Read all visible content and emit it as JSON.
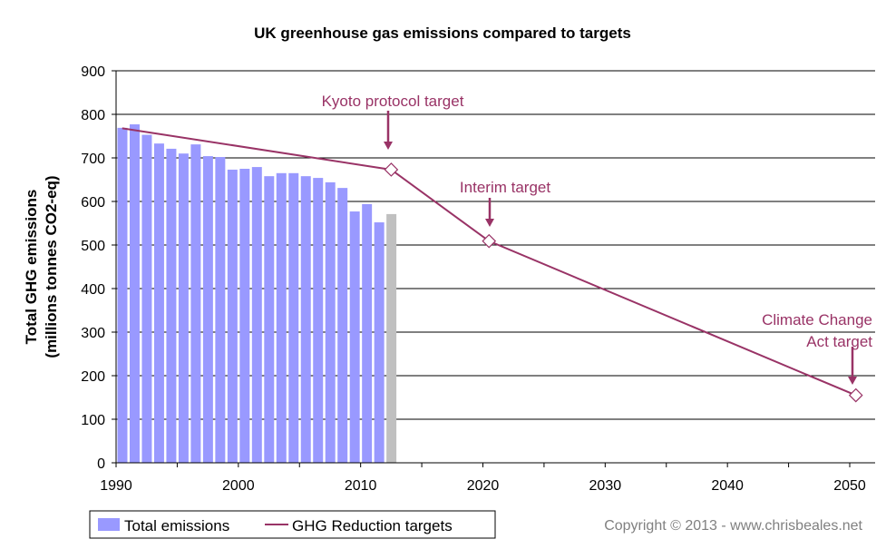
{
  "chart_data": {
    "type": "bar",
    "title": "UK greenhouse gas emissions compared to targets",
    "xlabel": "",
    "ylabel": [
      "Total GHG emissions",
      "(millions tonnes CO2-eq)"
    ],
    "xlim": [
      1990,
      2050
    ],
    "ylim": [
      0,
      900
    ],
    "x_ticks": [
      1990,
      2000,
      2010,
      2020,
      2030,
      2040,
      2050
    ],
    "y_ticks": [
      0,
      100,
      200,
      300,
      400,
      500,
      600,
      700,
      800,
      900
    ],
    "grid": "horizontal",
    "legend_position": "bottom-left",
    "series": [
      {
        "name": "Total emissions",
        "type": "bar",
        "color": "#9999FF",
        "x": [
          1990,
          1991,
          1992,
          1993,
          1994,
          1995,
          1996,
          1997,
          1998,
          1999,
          2000,
          2001,
          2002,
          2003,
          2004,
          2005,
          2006,
          2007,
          2008,
          2009,
          2010,
          2011,
          2012
        ],
        "values": [
          769,
          777,
          753,
          733,
          721,
          710,
          731,
          704,
          702,
          673,
          675,
          679,
          658,
          665,
          665,
          658,
          654,
          644,
          631,
          577,
          594,
          552,
          571
        ],
        "provisional_color": "#C0C0C0",
        "provisional_x": [
          2012
        ]
      },
      {
        "name": "GHG Reduction targets",
        "type": "line",
        "color": "#993366",
        "x": [
          1990,
          2012,
          2020,
          2050
        ],
        "values": [
          768,
          673,
          509,
          155
        ],
        "markers_at": [
          2012,
          2020,
          2050
        ]
      }
    ],
    "annotations": [
      {
        "text": [
          "Kyoto protocol target"
        ],
        "x": 2012,
        "y": 673
      },
      {
        "text": [
          "Interim target"
        ],
        "x": 2020,
        "y": 509
      },
      {
        "text": [
          "Climate Change",
          "Act target"
        ],
        "x": 2050,
        "y": 155
      }
    ]
  },
  "copyright": "Copyright © 2013 - www.chrisbeales.net"
}
